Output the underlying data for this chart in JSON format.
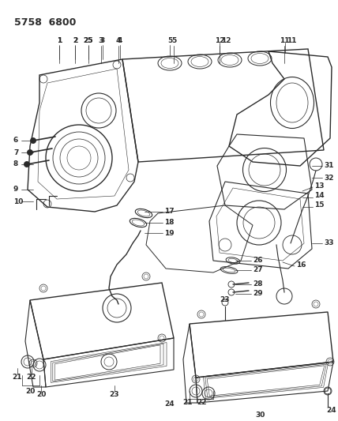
{
  "title": "5758  6800",
  "bg_color": "#ffffff",
  "line_color": "#2a2a2a",
  "label_color": "#000000",
  "figsize": [
    4.28,
    5.33
  ],
  "dpi": 100
}
